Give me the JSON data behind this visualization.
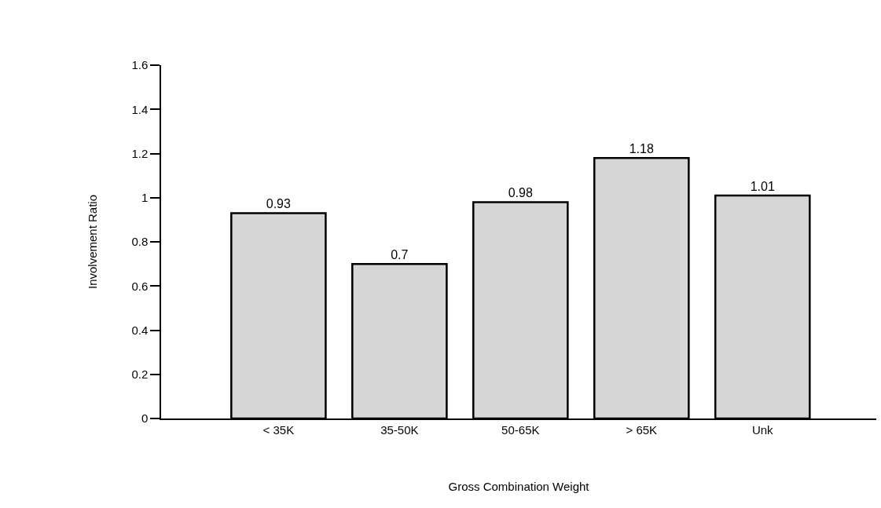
{
  "chart_data": {
    "type": "bar",
    "xlabel": "Gross Combination Weight",
    "ylabel": "Involvement Ratio",
    "categories": [
      "< 35K",
      "35-50K",
      "50-65K",
      "> 65K",
      "Unk"
    ],
    "values": [
      0.93,
      0.7,
      0.98,
      1.18,
      1.01
    ],
    "color": "#d6d6d6",
    "ylim": [
      0,
      1.6
    ],
    "yticks": [
      0,
      0.2,
      0.4,
      0.6,
      0.8,
      1,
      1.2,
      1.4,
      1.6
    ],
    "data_labels": true
  }
}
